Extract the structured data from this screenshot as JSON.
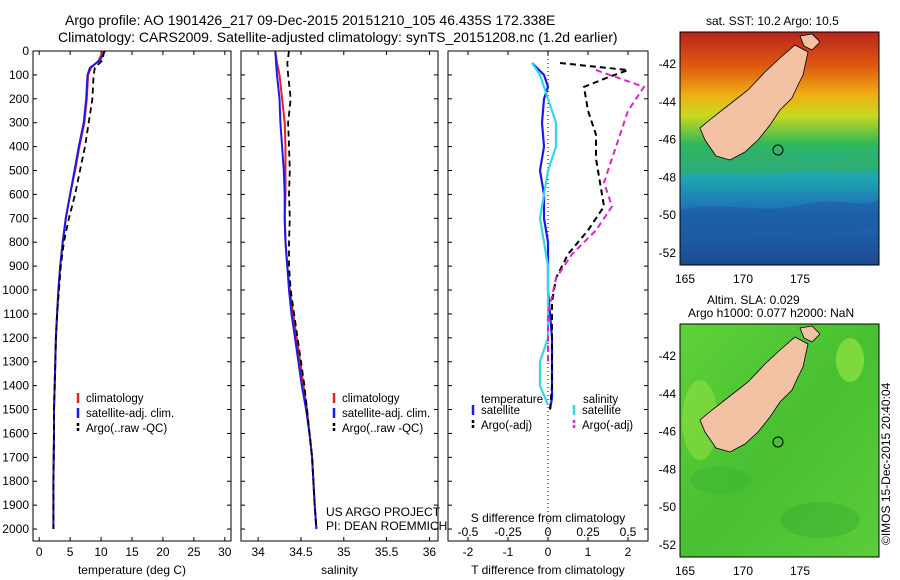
{
  "header": {
    "line1": "Argo profile: AO 1901426_217 09-Dec-2015 20151210_105 46.435S 172.338E",
    "line2": "Climatology: CARS2009. Satellite-adjusted climatology: synTS_20151208.nc (1.2d earlier)"
  },
  "credits": {
    "project": "US ARGO PROJECT",
    "pi": "PI: DEAN ROEMMICH",
    "imos": "©IMOS 15-Dec-2015 20:40:04"
  },
  "colors": {
    "climatology": "#e8201a",
    "satellite": "#1a1aee",
    "argo": "#000000",
    "sal_satellite": "#33d8e8",
    "sal_argo": "#e020d8",
    "land": "#f2c2a2"
  },
  "chart_data": [
    {
      "type": "line",
      "id": "temperature",
      "xlabel": "temperature (deg C)",
      "ylabel": "",
      "xlim": [
        -1,
        31
      ],
      "ylim": [
        0,
        2050
      ],
      "x_ticks": [
        0,
        5,
        10,
        15,
        20,
        25,
        30
      ],
      "y_ticks": [
        0,
        100,
        200,
        300,
        400,
        500,
        600,
        700,
        800,
        900,
        1000,
        1100,
        1200,
        1300,
        1400,
        1500,
        1600,
        1700,
        1800,
        1900,
        2000
      ],
      "legend": [
        "climatology",
        "satellite-adj. clim.",
        "Argo(..raw -QC)"
      ],
      "legend_position": "lower-center",
      "series": [
        {
          "name": "climatology",
          "x": [
            10.3,
            9.6,
            8.4,
            7.9,
            7.7,
            7.3,
            6.5,
            5.8,
            5.0,
            4.3,
            3.8,
            3.4,
            3.1,
            2.9,
            2.7,
            2.6,
            2.5,
            2.4,
            2.4,
            2.3,
            2.3
          ],
          "y": [
            0,
            40,
            70,
            100,
            200,
            300,
            400,
            500,
            600,
            700,
            800,
            900,
            1000,
            1100,
            1200,
            1300,
            1400,
            1500,
            1600,
            1800,
            2000
          ]
        },
        {
          "name": "satellite-adj. clim.",
          "x": [
            10.6,
            9.8,
            8.2,
            7.8,
            7.6,
            7.2,
            6.4,
            5.7,
            5.0,
            4.3,
            3.8,
            3.4,
            3.1,
            2.9,
            2.7,
            2.6,
            2.5,
            2.4,
            2.4,
            2.3,
            2.3
          ],
          "y": [
            0,
            40,
            70,
            100,
            200,
            300,
            400,
            500,
            600,
            700,
            800,
            900,
            1000,
            1100,
            1200,
            1300,
            1400,
            1500,
            1600,
            1800,
            2000
          ]
        },
        {
          "name": "Argo(..raw -QC)",
          "x": [
            10.5,
            10.2,
            9.0,
            8.8,
            8.6,
            8.0,
            7.4,
            6.6,
            5.8,
            4.8,
            4.0,
            3.5,
            3.2,
            2.9,
            2.7,
            2.6,
            2.5,
            2.4,
            2.4,
            2.3,
            2.3
          ],
          "y": [
            0,
            40,
            70,
            100,
            200,
            300,
            400,
            500,
            600,
            700,
            800,
            900,
            1000,
            1100,
            1200,
            1300,
            1400,
            1500,
            1600,
            1800,
            2000
          ]
        }
      ]
    },
    {
      "type": "line",
      "id": "salinity",
      "xlabel": "salinity",
      "ylabel": "",
      "xlim": [
        33.8,
        36.1
      ],
      "ylim": [
        0,
        2050
      ],
      "x_ticks": [
        34,
        34.5,
        35,
        35.5,
        36
      ],
      "x_tick_labels": [
        "34",
        "34.5",
        "35",
        "35.5",
        "36"
      ],
      "legend": [
        "climatology",
        "satellite-adj. clim.",
        "Argo(..raw -QC)"
      ],
      "legend_position": "lower-right",
      "series": [
        {
          "name": "climatology",
          "x": [
            34.2,
            34.22,
            34.25,
            34.28,
            34.31,
            34.32,
            34.32,
            34.32,
            34.31,
            34.32,
            34.34,
            34.37,
            34.41,
            34.45,
            34.49,
            34.53,
            34.57,
            34.6,
            34.63,
            34.66,
            34.68
          ],
          "y": [
            0,
            50,
            100,
            200,
            300,
            400,
            500,
            600,
            700,
            800,
            900,
            1000,
            1100,
            1200,
            1300,
            1400,
            1500,
            1600,
            1700,
            1900,
            2000
          ]
        },
        {
          "name": "satellite-adj. clim.",
          "x": [
            34.2,
            34.21,
            34.22,
            34.25,
            34.26,
            34.28,
            34.3,
            34.31,
            34.31,
            34.32,
            34.34,
            34.36,
            34.39,
            34.43,
            34.47,
            34.51,
            34.56,
            34.6,
            34.63,
            34.66,
            34.68
          ],
          "y": [
            0,
            50,
            100,
            200,
            300,
            400,
            500,
            600,
            700,
            800,
            900,
            1000,
            1100,
            1200,
            1300,
            1400,
            1500,
            1600,
            1700,
            1900,
            2000
          ]
        },
        {
          "name": "Argo(..raw -QC)",
          "x": [
            34.36,
            34.34,
            34.35,
            34.38,
            34.35,
            34.36,
            34.37,
            34.36,
            34.37,
            34.36,
            34.36,
            34.38,
            34.42,
            34.46,
            34.5,
            34.54,
            34.57,
            34.6,
            34.63,
            34.66,
            34.68
          ],
          "y": [
            0,
            50,
            100,
            200,
            300,
            400,
            500,
            600,
            700,
            800,
            900,
            1000,
            1100,
            1200,
            1300,
            1400,
            1500,
            1600,
            1700,
            1900,
            2000
          ]
        }
      ]
    },
    {
      "type": "line",
      "id": "difference",
      "xlabel": "T difference from climatology",
      "xlabel2": "S difference from climatology",
      "xlim": [
        -2.5,
        2.5
      ],
      "ylim": [
        0,
        2050
      ],
      "x_ticks": [
        -2,
        -1,
        0,
        1,
        2
      ],
      "x2_ticks": [
        -0.5,
        -0.25,
        0,
        0.25,
        0.5
      ],
      "x2_tick_labels": [
        "-0.5",
        "-0.25",
        "0",
        "0.25",
        "0.5"
      ],
      "legend_temperature_title": "temperature",
      "legend_salinity_title": "salinity",
      "legend_temperature": [
        "satellite",
        "Argo(-adj)"
      ],
      "legend_salinity": [
        "satellite",
        "Argo(-adj)"
      ],
      "legend_position": "lower-center",
      "series": [
        {
          "name": "satellite",
          "x": [
            -0.4,
            -0.1,
            0.0,
            -0.1,
            -0.15,
            -0.1,
            -0.2,
            -0.1,
            -0.1,
            0.0,
            0.0,
            0.0,
            0.05,
            0.1,
            0.1,
            0.1,
            0.1,
            0.05
          ],
          "y": [
            50,
            100,
            150,
            200,
            300,
            400,
            500,
            600,
            700,
            800,
            900,
            1000,
            1100,
            1200,
            1300,
            1400,
            1450,
            1500
          ]
        },
        {
          "name": "Argo(-adj)",
          "x": [
            0.3,
            2.0,
            1.5,
            0.9,
            1.0,
            1.2,
            1.2,
            1.3,
            1.4,
            1.0,
            0.5,
            0.2,
            0.1,
            0.1,
            0.1,
            0.1,
            0.05
          ],
          "y": [
            50,
            80,
            110,
            150,
            250,
            350,
            450,
            550,
            650,
            750,
            850,
            950,
            1050,
            1200,
            1300,
            1400,
            1500
          ]
        },
        {
          "name": "satellite (S)",
          "x": [
            -0.1,
            -0.05,
            0.0,
            0.05,
            0.05,
            0.0,
            -0.05,
            0.0,
            0.0,
            0.0,
            -0.05,
            -0.05,
            0.0
          ],
          "y": [
            50,
            100,
            200,
            300,
            400,
            500,
            700,
            900,
            1100,
            1200,
            1300,
            1400,
            1480
          ]
        },
        {
          "name": "Argo(-adj) (S)",
          "x": [
            0.3,
            0.6,
            0.5,
            0.45,
            0.4,
            0.35,
            0.4,
            0.3,
            0.15,
            0.05,
            0.0,
            0.0
          ],
          "y": [
            80,
            150,
            250,
            350,
            450,
            550,
            650,
            750,
            850,
            950,
            1100,
            1300
          ]
        }
      ]
    }
  ],
  "maps": [
    {
      "id": "sst-map",
      "title": "sat. SST: 10.2 Argo: 10.5",
      "x_ticks": [
        "165",
        "170",
        "175"
      ],
      "y_ticks": [
        "-42",
        "-44",
        "-46",
        "-48",
        "-50",
        "-52"
      ]
    },
    {
      "id": "sla-map",
      "title_line1": "Altim. SLA: 0.029",
      "title_line2": "Argo h1000: 0.077 h2000: NaN",
      "x_ticks": [
        "165",
        "170",
        "175"
      ],
      "y_ticks": [
        "-42",
        "-44",
        "-46",
        "-48",
        "-50",
        "-52"
      ]
    }
  ]
}
